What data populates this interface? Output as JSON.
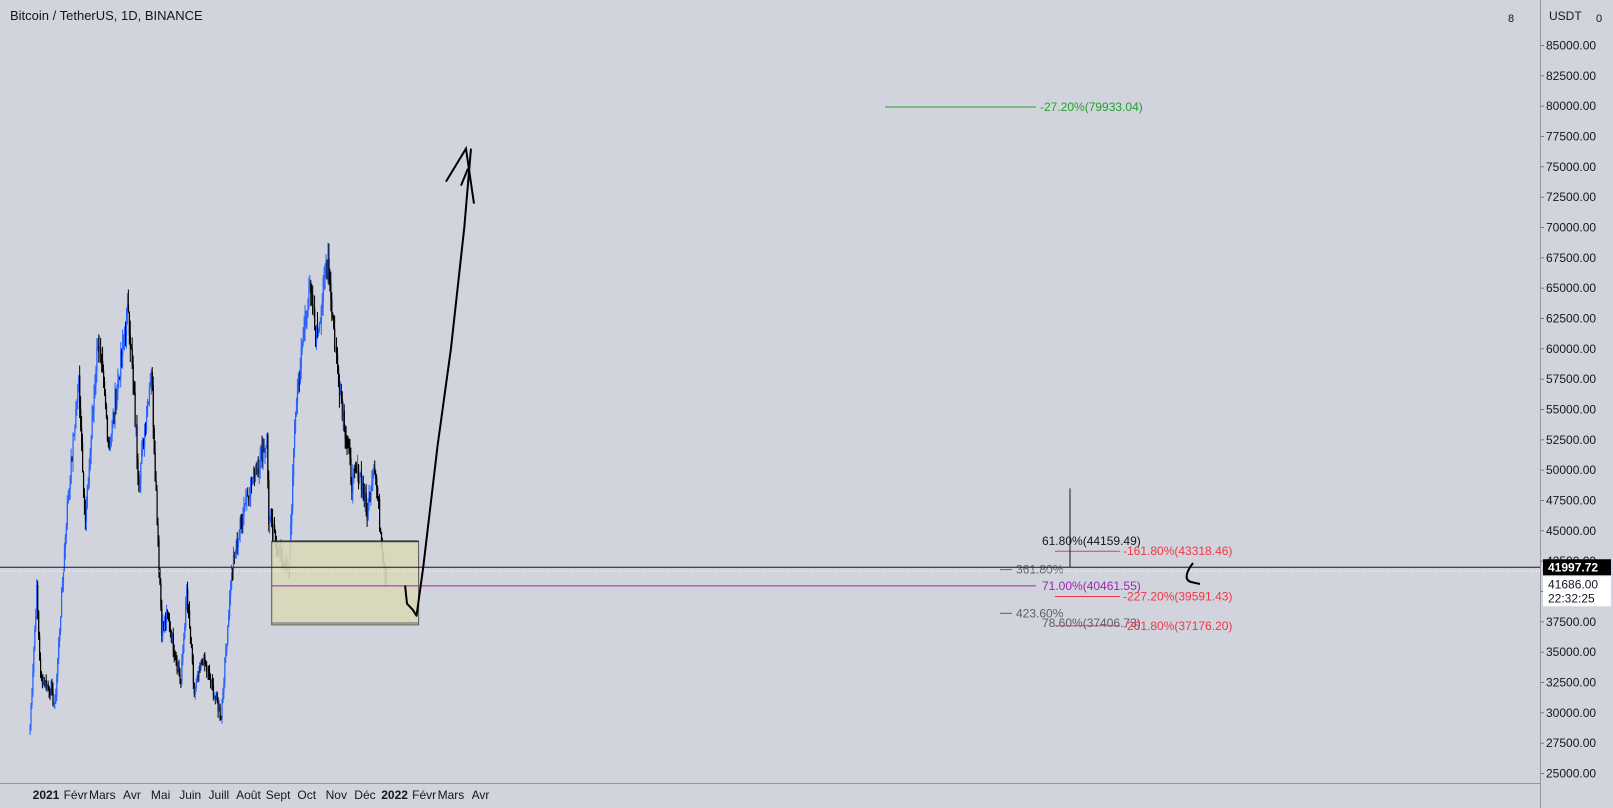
{
  "header": {
    "title": "Bitcoin / TetherUS, 1D, BINANCE"
  },
  "price_axis": {
    "currency": "USDT",
    "top_left": "8",
    "top_right": "0",
    "last_price_label": "41997.72",
    "bid_label": "41686.00",
    "countdown_label": "22:32:25"
  },
  "colors": {
    "background": "#d1d4dc",
    "bull_candle": "#2962ff",
    "bear_candle": "#000000",
    "fib_green": "#22a32b",
    "fib_red": "#f23645",
    "fib_purple": "#9c27b0",
    "zone_fill": "#d9d7b8"
  },
  "chart_data": {
    "type": "candlestick",
    "symbol": "Bitcoin / TetherUS",
    "interval": "1D",
    "exchange": "BINANCE",
    "x_labels": [
      "2021",
      "Févr",
      "Mars",
      "Avr",
      "Mai",
      "Juin",
      "Juill",
      "Août",
      "Sept",
      "Oct",
      "Nov",
      "Déc",
      "2022",
      "Févr",
      "Mars",
      "Avr"
    ],
    "y_ticks": [
      "85000.00",
      "82500.00",
      "80000.00",
      "77500.00",
      "75000.00",
      "72500.00",
      "70000.00",
      "67500.00",
      "65000.00",
      "62500.00",
      "60000.00",
      "57500.00",
      "55000.00",
      "52500.00",
      "50000.00",
      "47500.00",
      "45000.00",
      "42500.00",
      "40000.00",
      "37500.00",
      "35000.00",
      "32500.00",
      "30000.00",
      "27500.00",
      "25000.00"
    ],
    "ylim": [
      24500,
      87500
    ],
    "price_path": [
      [
        "2021-01-01",
        29000
      ],
      [
        "2021-01-08",
        40000
      ],
      [
        "2021-01-12",
        33000
      ],
      [
        "2021-01-22",
        32000
      ],
      [
        "2021-01-27",
        30500
      ],
      [
        "2021-02-08",
        46000
      ],
      [
        "2021-02-21",
        57500
      ],
      [
        "2021-02-28",
        45500
      ],
      [
        "2021-03-13",
        61000
      ],
      [
        "2021-03-25",
        52000
      ],
      [
        "2021-04-14",
        63500
      ],
      [
        "2021-04-25",
        49000
      ],
      [
        "2021-05-08",
        58500
      ],
      [
        "2021-05-12",
        50000
      ],
      [
        "2021-05-19",
        37000
      ],
      [
        "2021-05-25",
        38000
      ],
      [
        "2021-06-08",
        32500
      ],
      [
        "2021-06-14",
        40000
      ],
      [
        "2021-06-22",
        31500
      ],
      [
        "2021-07-01",
        34500
      ],
      [
        "2021-07-20",
        29800
      ],
      [
        "2021-07-31",
        41500
      ],
      [
        "2021-08-14",
        47500
      ],
      [
        "2021-08-23",
        49500
      ],
      [
        "2021-09-06",
        52500
      ],
      [
        "2021-09-08",
        46000
      ],
      [
        "2021-09-20",
        43000
      ],
      [
        "2021-09-29",
        41500
      ],
      [
        "2021-10-06",
        55000
      ],
      [
        "2021-10-15",
        61500
      ],
      [
        "2021-10-20",
        65000
      ],
      [
        "2021-10-28",
        61000
      ],
      [
        "2021-11-09",
        67500
      ],
      [
        "2021-11-12",
        64500
      ],
      [
        "2021-11-16",
        60500
      ],
      [
        "2021-11-26",
        54000
      ],
      [
        "2021-12-04",
        49000
      ],
      [
        "2021-12-12",
        50000
      ],
      [
        "2021-12-20",
        46500
      ],
      [
        "2021-12-27",
        51000
      ],
      [
        "2022-01-05",
        43500
      ],
      [
        "2022-01-08",
        41500
      ],
      [
        "2022-01-10",
        42000
      ]
    ],
    "last_price": 41997.72,
    "fib_levels": [
      {
        "label": "-27.20%(79933.04)",
        "value": 79933.04,
        "color": "green"
      },
      {
        "label": "61.80%(44159.49)",
        "value": 44159.49,
        "color": "black"
      },
      {
        "label": "-161.80%(43318.46)",
        "value": 43318.46,
        "color": "red"
      },
      {
        "label": "361.80%",
        "value": 41800,
        "color": "gray"
      },
      {
        "label": "71.00%(40461.55)",
        "value": 40461.55,
        "color": "purple"
      },
      {
        "label": "-227.20%(39591.43)",
        "value": 39591.43,
        "color": "red"
      },
      {
        "label": "423.60%",
        "value": 38200,
        "color": "gray"
      },
      {
        "label": "78.60%(37406.73)",
        "value": 37406.73,
        "color": "gray"
      },
      {
        "label": "-261.80%(37176.20)",
        "value": 37176.2,
        "color": "red"
      }
    ],
    "zone": {
      "from": "2021-10-01",
      "to": "2022-01-22",
      "low": 37250,
      "high": 44100
    },
    "projection_path": [
      [
        "2022-01-12",
        40500
      ],
      [
        "2022-01-14",
        39000
      ],
      [
        "2022-01-20",
        38500
      ],
      [
        "2022-01-24",
        38000
      ],
      [
        "2022-01-31",
        42000
      ],
      [
        "2022-02-15",
        52000
      ],
      [
        "2022-03-01",
        60000
      ],
      [
        "2022-03-15",
        70000
      ],
      [
        "2022-03-22",
        76500
      ]
    ]
  }
}
